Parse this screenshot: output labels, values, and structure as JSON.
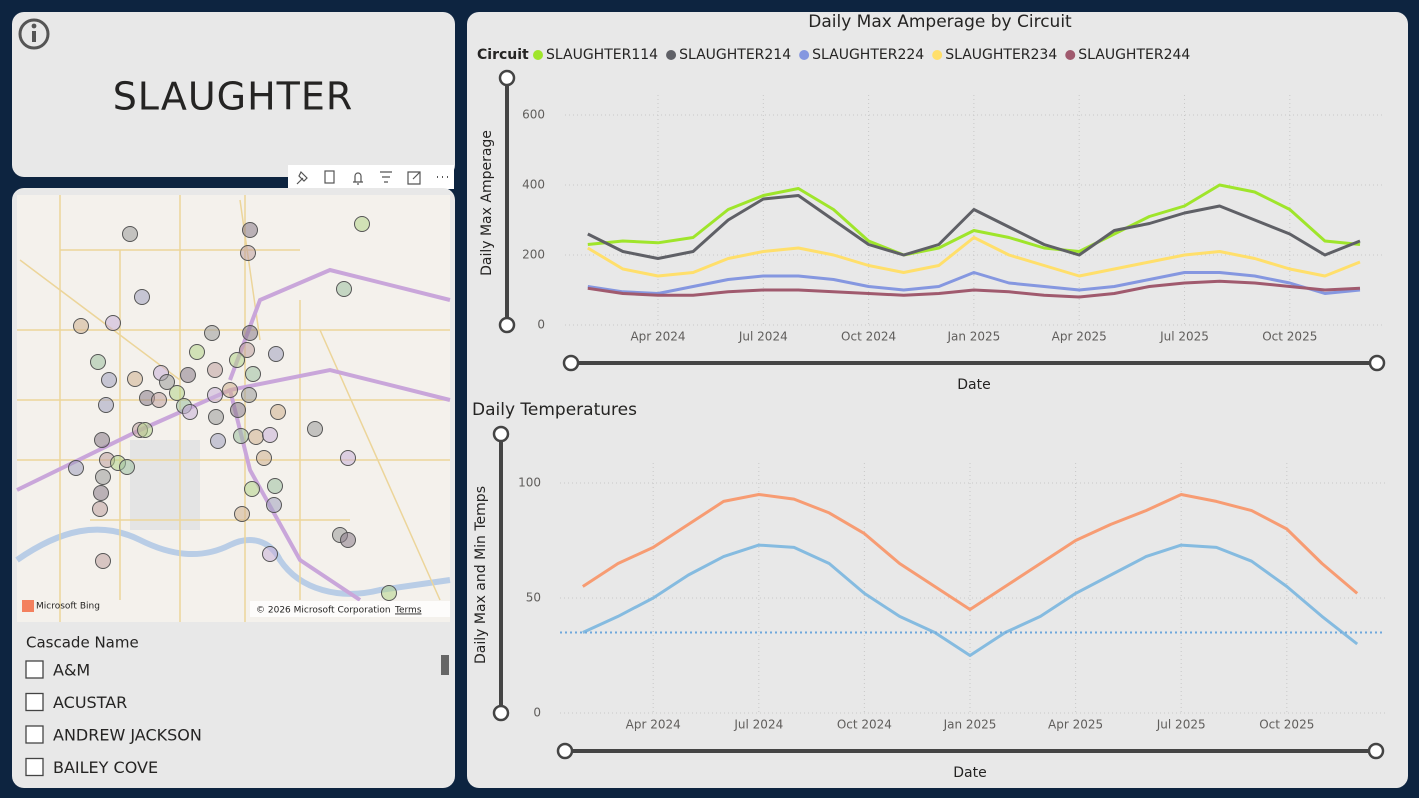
{
  "header": {
    "title": "SLAUGHTER"
  },
  "map": {
    "provider": "Microsoft Bing",
    "copyright": "© 2026 Microsoft Corporation",
    "terms": "Terms"
  },
  "slicer": {
    "title": "Cascade Name",
    "items": [
      "A&M",
      "ACUSTAR",
      "ANDREW JACKSON",
      "BAILEY COVE"
    ]
  },
  "chart_data": [
    {
      "type": "line",
      "title": "Daily Max Amperage by Circuit",
      "legend_title": "Circuit",
      "y_label": "Daily Max Amperage",
      "x_label": "Date",
      "x": [
        "2024-02",
        "2024-03",
        "2024-04",
        "2024-05",
        "2024-06",
        "2024-07",
        "2024-08",
        "2024-09",
        "2024-10",
        "2024-11",
        "2024-12",
        "2025-01",
        "2025-02",
        "2025-03",
        "2025-04",
        "2025-05",
        "2025-06",
        "2025-07",
        "2025-08",
        "2025-09",
        "2025-10",
        "2025-11",
        "2025-12"
      ],
      "series": [
        {
          "name": "SLAUGHTER114",
          "color": "#9fe52b",
          "values": [
            230,
            240,
            235,
            250,
            330,
            370,
            390,
            330,
            240,
            200,
            220,
            270,
            250,
            220,
            210,
            260,
            310,
            340,
            400,
            380,
            330,
            240,
            230
          ]
        },
        {
          "name": "SLAUGHTER214",
          "color": "#5f6066",
          "values": [
            260,
            210,
            190,
            210,
            300,
            360,
            370,
            300,
            230,
            200,
            230,
            330,
            280,
            230,
            200,
            270,
            290,
            320,
            340,
            300,
            260,
            200,
            240
          ]
        },
        {
          "name": "SLAUGHTER224",
          "color": "#8597e0",
          "values": [
            110,
            95,
            90,
            110,
            130,
            140,
            140,
            130,
            110,
            100,
            110,
            150,
            120,
            110,
            100,
            110,
            130,
            150,
            150,
            140,
            120,
            90,
            100
          ]
        },
        {
          "name": "SLAUGHTER234",
          "color": "#ffdf6b",
          "values": [
            220,
            160,
            140,
            150,
            190,
            210,
            220,
            200,
            170,
            150,
            170,
            250,
            200,
            170,
            140,
            160,
            180,
            200,
            210,
            190,
            160,
            140,
            180
          ]
        },
        {
          "name": "SLAUGHTER244",
          "color": "#a05a6e",
          "values": [
            105,
            90,
            85,
            85,
            95,
            100,
            100,
            95,
            90,
            85,
            90,
            100,
            95,
            85,
            80,
            90,
            110,
            120,
            125,
            120,
            110,
            100,
            105
          ]
        }
      ],
      "ylim": [
        0,
        600
      ],
      "yticks": [
        0,
        200,
        400,
        600
      ],
      "xticks": [
        {
          "value": "2024-04",
          "label": "Apr 2024"
        },
        {
          "value": "2024-07",
          "label": "Jul 2024"
        },
        {
          "value": "2024-10",
          "label": "Oct 2024"
        },
        {
          "value": "2025-01",
          "label": "Jan 2025"
        },
        {
          "value": "2025-04",
          "label": "Apr 2025"
        },
        {
          "value": "2025-07",
          "label": "Jul 2025"
        },
        {
          "value": "2025-10",
          "label": "Oct 2025"
        }
      ],
      "grid": true
    },
    {
      "type": "line",
      "title": "Daily Temperatures",
      "y_label": "Daily Max and Min Temps",
      "x_label": "Date",
      "x": [
        "2024-02",
        "2024-03",
        "2024-04",
        "2024-05",
        "2024-06",
        "2024-07",
        "2024-08",
        "2024-09",
        "2024-10",
        "2024-11",
        "2024-12",
        "2025-01",
        "2025-02",
        "2025-03",
        "2025-04",
        "2025-05",
        "2025-06",
        "2025-07",
        "2025-08",
        "2025-09",
        "2025-10",
        "2025-11",
        "2025-12"
      ],
      "series": [
        {
          "color": "#f79c73",
          "values": [
            55,
            65,
            72,
            82,
            92,
            95,
            93,
            87,
            78,
            65,
            55,
            45,
            55,
            65,
            75,
            82,
            88,
            95,
            92,
            88,
            80,
            65,
            52
          ]
        },
        {
          "color": "#85bbe0",
          "values": [
            35,
            42,
            50,
            60,
            68,
            73,
            72,
            65,
            52,
            42,
            35,
            25,
            35,
            42,
            52,
            60,
            68,
            73,
            72,
            66,
            55,
            42,
            30
          ]
        }
      ],
      "reference_line": {
        "value": 35,
        "color": "#6fa8dc"
      },
      "ylim": [
        0,
        100
      ],
      "yticks": [
        0,
        50,
        100
      ],
      "xticks": [
        {
          "value": "2024-04",
          "label": "Apr 2024"
        },
        {
          "value": "2024-07",
          "label": "Jul 2024"
        },
        {
          "value": "2024-10",
          "label": "Oct 2024"
        },
        {
          "value": "2025-01",
          "label": "Jan 2025"
        },
        {
          "value": "2025-04",
          "label": "Apr 2025"
        },
        {
          "value": "2025-07",
          "label": "Jul 2025"
        },
        {
          "value": "2025-10",
          "label": "Oct 2025"
        }
      ],
      "grid": true
    }
  ]
}
